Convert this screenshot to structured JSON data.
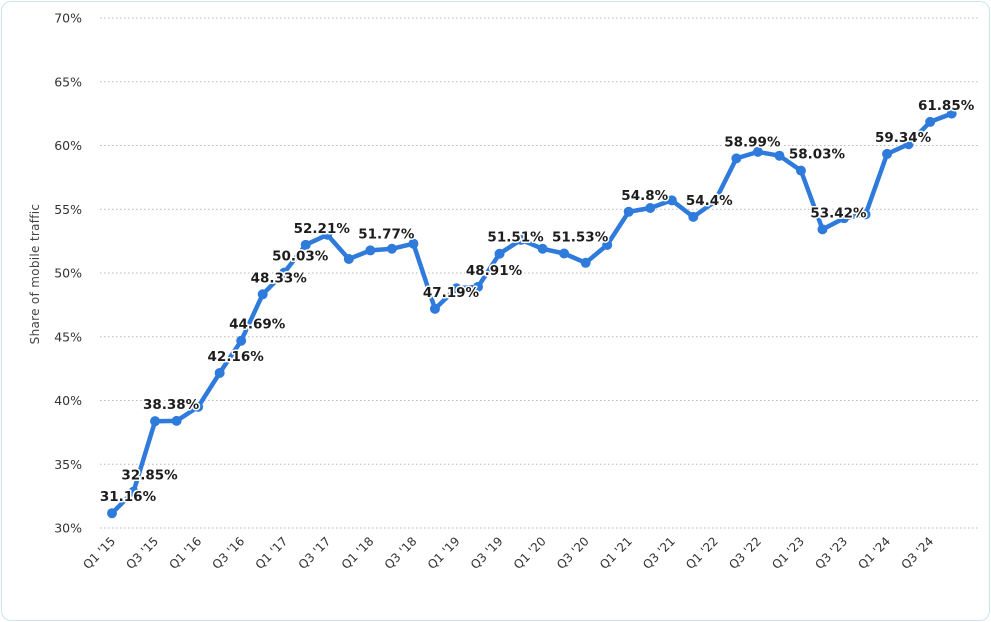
{
  "chart_data": {
    "type": "line",
    "ylabel": "Share of mobile traffic",
    "xlabel": "",
    "ylim": [
      30,
      70
    ],
    "yticks": [
      "30%",
      "35%",
      "40%",
      "45%",
      "50%",
      "55%",
      "60%",
      "65%",
      "70%"
    ],
    "grid": true,
    "categories": [
      "Q1 '15",
      "Q2 '15",
      "Q3 '15",
      "Q4 '15",
      "Q1 '16",
      "Q2 '16",
      "Q3 '16",
      "Q4 '16",
      "Q1 '17",
      "Q2 '17",
      "Q3 '17",
      "Q4 '17",
      "Q1 '18",
      "Q2 '18",
      "Q3 '18",
      "Q4 '18",
      "Q1 '19",
      "Q2 '19",
      "Q3 '19",
      "Q4 '19",
      "Q1 '20",
      "Q2 '20",
      "Q3 '20",
      "Q4 '20",
      "Q1 '21",
      "Q2 '21",
      "Q3 '21",
      "Q4 '21",
      "Q1 '22",
      "Q2 '22",
      "Q3 '22",
      "Q4 '22",
      "Q1 '23",
      "Q2 '23",
      "Q3 '23",
      "Q4 '23",
      "Q1 '24",
      "Q2 '24",
      "Q3 '24",
      "Q4 '24"
    ],
    "xtick_labels": [
      "Q1 '15",
      "Q3 '15",
      "Q1 '16",
      "Q3 '16",
      "Q1 '17",
      "Q3 '17",
      "Q1 '18",
      "Q3 '18",
      "Q1 '19",
      "Q3 '19",
      "Q1 '20",
      "Q3 '20",
      "Q1 '21",
      "Q3 '21",
      "Q1 '22",
      "Q3 '22",
      "Q1 '23",
      "Q3 '23",
      "Q1 '24",
      "Q3 '24"
    ],
    "values": [
      31.16,
      32.85,
      38.38,
      38.4,
      39.5,
      42.16,
      44.69,
      48.33,
      50.03,
      52.21,
      53.0,
      51.1,
      51.77,
      51.9,
      52.3,
      47.19,
      48.8,
      48.91,
      51.51,
      52.6,
      51.9,
      51.53,
      50.8,
      52.2,
      54.8,
      55.1,
      55.7,
      54.4,
      55.6,
      58.99,
      59.5,
      59.2,
      58.03,
      53.42,
      54.3,
      54.6,
      59.34,
      60.1,
      61.85,
      62.5
    ],
    "data_labels": [
      {
        "index": 0,
        "text": "31.16%"
      },
      {
        "index": 1,
        "text": "32.85%"
      },
      {
        "index": 2,
        "text": "38.38%"
      },
      {
        "index": 5,
        "text": "42.16%"
      },
      {
        "index": 6,
        "text": "44.69%"
      },
      {
        "index": 7,
        "text": "48.33%"
      },
      {
        "index": 8,
        "text": "50.03%"
      },
      {
        "index": 9,
        "text": "52.21%"
      },
      {
        "index": 12,
        "text": "51.77%"
      },
      {
        "index": 15,
        "text": "47.19%"
      },
      {
        "index": 17,
        "text": "48.91%"
      },
      {
        "index": 18,
        "text": "51.51%"
      },
      {
        "index": 21,
        "text": "51.53%"
      },
      {
        "index": 24,
        "text": "54.8%"
      },
      {
        "index": 27,
        "text": "54.4%"
      },
      {
        "index": 29,
        "text": "58.99%"
      },
      {
        "index": 32,
        "text": "58.03%"
      },
      {
        "index": 33,
        "text": "53.42%"
      },
      {
        "index": 36,
        "text": "59.34%"
      },
      {
        "index": 38,
        "text": "61.85%"
      }
    ],
    "line_color": "#2e7bdc"
  }
}
